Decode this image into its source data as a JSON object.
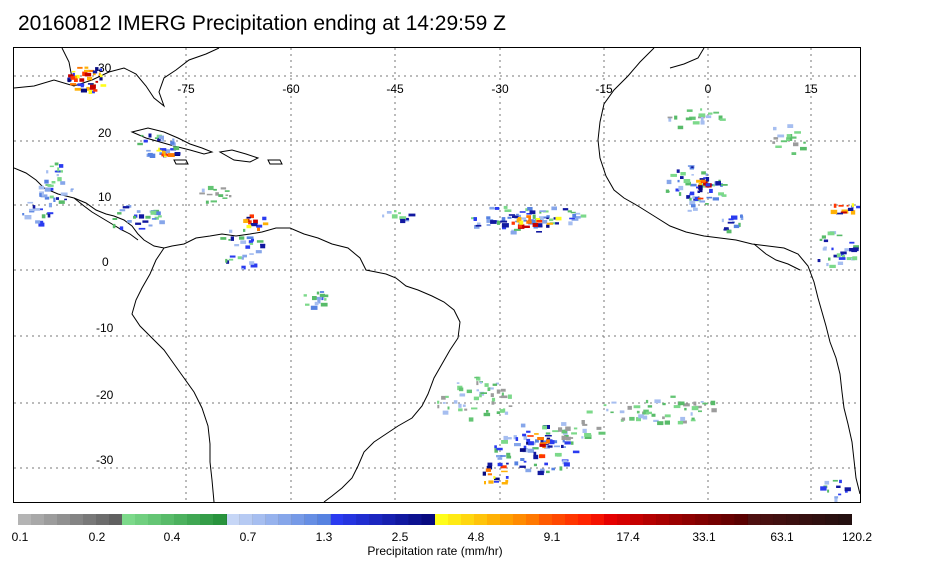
{
  "title": "20160812 IMERG Precipitation ending at 14:29:59 Z",
  "map": {
    "lon_labels": [
      "-75",
      "-60",
      "-45",
      "-30",
      "-15",
      "0",
      "15"
    ],
    "lat_labels": [
      "30",
      "20",
      "10",
      "0",
      "-10",
      "-20",
      "-30"
    ],
    "coastline_color": "#000000",
    "gridline_color": "#777777"
  },
  "colorbar": {
    "title": "Precipitation rate (mm/hr)",
    "tick_labels": [
      "0.1",
      "0.2",
      "0.4",
      "0.7",
      "1.3",
      "2.5",
      "4.8",
      "9.1",
      "17.4",
      "33.1",
      "63.1",
      "120.2"
    ],
    "colors": [
      "#b4b4b4",
      "#a8a8a8",
      "#9c9c9c",
      "#909090",
      "#848484",
      "#787878",
      "#6c6c6c",
      "#606060",
      "#7cd98a",
      "#70cf7f",
      "#64c574",
      "#58bb69",
      "#4cb15e",
      "#40a753",
      "#349d48",
      "#28933d",
      "#c6d6f6",
      "#b6caf3",
      "#a6bef0",
      "#96b2ed",
      "#86a6ea",
      "#769ae7",
      "#668ee4",
      "#5682e1",
      "#2a3bf0",
      "#2534e0",
      "#202dd0",
      "#1b26c0",
      "#161fb0",
      "#1118a0",
      "#0c1190",
      "#070a80",
      "#fffd1a",
      "#ffea14",
      "#ffd70f",
      "#ffc40a",
      "#ffb105",
      "#ff9e00",
      "#ff8b00",
      "#ff7800",
      "#ff5a00",
      "#ff4800",
      "#ff3600",
      "#ff2400",
      "#f51200",
      "#e50000",
      "#d50000",
      "#c50000",
      "#b50000",
      "#a80000",
      "#9b0000",
      "#8e0000",
      "#810000",
      "#740000",
      "#670000",
      "#5a0000",
      "#4e1010",
      "#481010",
      "#421010",
      "#3c1010",
      "#361010",
      "#301010",
      "#2a1010",
      "#241010"
    ]
  }
}
